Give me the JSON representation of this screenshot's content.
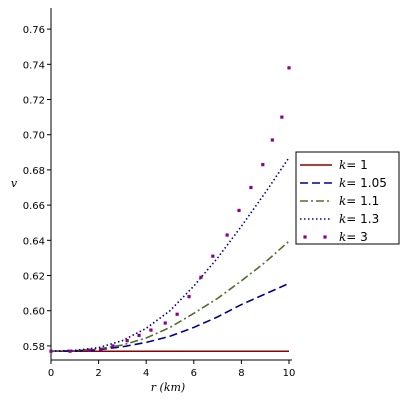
{
  "chart_data": {
    "type": "line",
    "title": "",
    "xlabel": "r (km)",
    "ylabel": "v",
    "xlim": [
      0,
      10
    ],
    "ylim": [
      0.572,
      0.772
    ],
    "x_ticks": [
      "0",
      "2",
      "4",
      "6",
      "8",
      "10"
    ],
    "y_ticks": [
      "0.58",
      "0.60",
      "0.62",
      "0.64",
      "0.66",
      "0.68",
      "0.70",
      "0.72",
      "0.74",
      "0.76"
    ],
    "legend_position": "right",
    "grid": false,
    "series": [
      {
        "name": "k = 1",
        "k_label": "k",
        "value_label": "= 1",
        "style": "solid",
        "color": "#8b0000",
        "x": [
          0,
          10
        ],
        "y": [
          0.577,
          0.577
        ]
      },
      {
        "name": "k = 1.05",
        "k_label": "k",
        "value_label": "= 1.05",
        "style": "dash",
        "color": "#00008b",
        "x": [
          0,
          1,
          2,
          3,
          4,
          5,
          6,
          7,
          8,
          9,
          10
        ],
        "y": [
          0.577,
          0.5772,
          0.5778,
          0.5795,
          0.582,
          0.5855,
          0.5905,
          0.5965,
          0.6035,
          0.6095,
          0.6155
        ]
      },
      {
        "name": "k = 1.1",
        "k_label": "k",
        "value_label": "= 1.1",
        "style": "dashdot",
        "color": "#556b2f",
        "x": [
          0,
          1,
          2,
          3,
          4,
          5,
          6,
          7,
          8,
          9,
          10
        ],
        "y": [
          0.577,
          0.5773,
          0.5783,
          0.5805,
          0.5845,
          0.5905,
          0.5985,
          0.607,
          0.617,
          0.6275,
          0.6395
        ]
      },
      {
        "name": "k = 1.3",
        "k_label": "k",
        "value_label": "= 1.3",
        "style": "dot",
        "color": "#00008b",
        "x": [
          0,
          1,
          2,
          3,
          4,
          5,
          6,
          7,
          8,
          9,
          10
        ],
        "y": [
          0.577,
          0.5775,
          0.579,
          0.583,
          0.59,
          0.6,
          0.614,
          0.63,
          0.648,
          0.667,
          0.687
        ]
      },
      {
        "name": "k = 3",
        "k_label": "k",
        "value_label": "= 3",
        "style": "points",
        "color": "#8b008b",
        "x": [
          0,
          0.8,
          1.6,
          2.1,
          2.6,
          3.2,
          3.7,
          4.2,
          4.8,
          5.3,
          5.8,
          6.3,
          6.8,
          7.4,
          7.9,
          8.4,
          8.9,
          9.3,
          9.7,
          10
        ],
        "y": [
          0.577,
          0.577,
          0.5775,
          0.578,
          0.58,
          0.583,
          0.586,
          0.589,
          0.593,
          0.598,
          0.608,
          0.619,
          0.631,
          0.643,
          0.657,
          0.67,
          0.683,
          0.697,
          0.71,
          0.738
        ]
      }
    ]
  }
}
